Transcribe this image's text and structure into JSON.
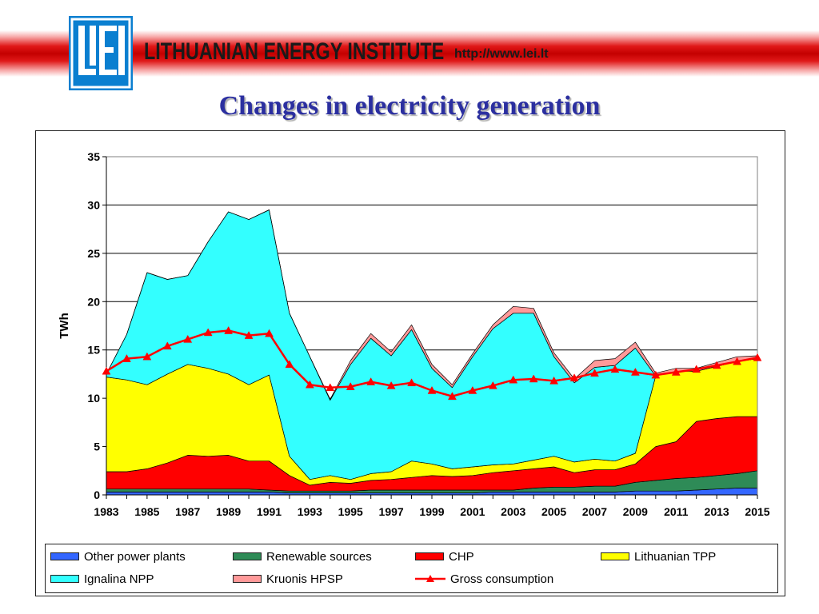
{
  "header": {
    "logo_text": "LEI",
    "institute_name": "LITHUANIAN ENERGY INSTITUTE",
    "url": "http://www.lei.lt",
    "accent_color": "#cc0000",
    "logo_color": "#0a7fd0"
  },
  "slide": {
    "title": "Changes in electricity generation",
    "title_color": "#2b2fa0"
  },
  "chart_data": {
    "type": "area",
    "stacked": true,
    "title": "",
    "xlabel": "",
    "ylabel": "TWh",
    "ylim": [
      0,
      35
    ],
    "yticks": [
      0,
      5,
      10,
      15,
      20,
      25,
      30,
      35
    ],
    "xlim": [
      1983,
      2015
    ],
    "xticks": [
      1983,
      1985,
      1987,
      1989,
      1991,
      1993,
      1995,
      1997,
      1999,
      2001,
      2003,
      2005,
      2007,
      2009,
      2011,
      2013,
      2015
    ],
    "grid": "horizontal",
    "legend_position": "bottom",
    "x": [
      1983,
      1984,
      1985,
      1986,
      1987,
      1988,
      1989,
      1990,
      1991,
      1992,
      1993,
      1994,
      1995,
      1996,
      1997,
      1998,
      1999,
      2000,
      2001,
      2002,
      2003,
      2004,
      2005,
      2006,
      2007,
      2008,
      2009,
      2010,
      2011,
      2012,
      2013,
      2014,
      2015
    ],
    "series": [
      {
        "name": "Other power plants",
        "color": "#3366ff",
        "values": [
          0.3,
          0.3,
          0.3,
          0.3,
          0.3,
          0.3,
          0.3,
          0.3,
          0.3,
          0.2,
          0.2,
          0.2,
          0.2,
          0.2,
          0.2,
          0.2,
          0.2,
          0.2,
          0.2,
          0.3,
          0.3,
          0.3,
          0.3,
          0.3,
          0.3,
          0.3,
          0.4,
          0.4,
          0.4,
          0.5,
          0.6,
          0.7,
          0.7
        ]
      },
      {
        "name": "Renewable sources",
        "color": "#2e8b57",
        "values": [
          0.3,
          0.3,
          0.3,
          0.3,
          0.3,
          0.3,
          0.3,
          0.3,
          0.2,
          0.2,
          0.2,
          0.2,
          0.2,
          0.3,
          0.3,
          0.3,
          0.3,
          0.3,
          0.3,
          0.2,
          0.2,
          0.4,
          0.5,
          0.5,
          0.6,
          0.6,
          0.9,
          1.1,
          1.3,
          1.3,
          1.4,
          1.5,
          1.8
        ]
      },
      {
        "name": "CHP",
        "color": "#ff0000",
        "values": [
          1.8,
          1.8,
          2.1,
          2.7,
          3.5,
          3.4,
          3.5,
          2.9,
          3.0,
          1.6,
          0.6,
          0.9,
          0.8,
          1.0,
          1.1,
          1.3,
          1.5,
          1.4,
          1.5,
          1.8,
          2.0,
          2.0,
          2.1,
          1.5,
          1.7,
          1.7,
          1.9,
          3.5,
          3.8,
          5.8,
          5.9,
          5.9,
          5.6
        ]
      },
      {
        "name": "Lithuanian TPP",
        "color": "#ffff00",
        "values": [
          9.8,
          9.5,
          8.7,
          9.2,
          9.4,
          9.1,
          8.4,
          7.9,
          8.9,
          2.0,
          0.6,
          0.7,
          0.4,
          0.7,
          0.8,
          1.7,
          1.2,
          0.8,
          0.9,
          0.8,
          0.7,
          0.9,
          1.1,
          1.1,
          1.1,
          0.9,
          1.1,
          7.3,
          7.3,
          5.2,
          5.4,
          5.7,
          6.0
        ]
      },
      {
        "name": "Ignalina NPP",
        "color": "#33ffff",
        "values": [
          0.3,
          4.7,
          11.6,
          9.8,
          9.2,
          13.1,
          16.8,
          17.1,
          17.1,
          14.8,
          12.7,
          7.8,
          11.9,
          14.0,
          12.0,
          13.6,
          9.9,
          8.4,
          11.4,
          14.1,
          15.6,
          15.2,
          10.3,
          8.2,
          9.5,
          9.9,
          10.9,
          0,
          0,
          0,
          0,
          0,
          0
        ]
      },
      {
        "name": "Kruonis HPSP",
        "color": "#ff9999",
        "values": [
          0,
          0,
          0,
          0,
          0,
          0,
          0,
          0,
          0,
          0,
          0,
          0.1,
          0.4,
          0.5,
          0.4,
          0.5,
          0.4,
          0.3,
          0.3,
          0.4,
          0.7,
          0.5,
          0.4,
          0.4,
          0.7,
          0.7,
          0.6,
          0.3,
          0.3,
          0.3,
          0.4,
          0.5,
          0.3
        ]
      }
    ],
    "line_series": {
      "name": "Gross consumption",
      "color": "#ff0000",
      "marker": "triangle",
      "values": [
        12.8,
        14.1,
        14.3,
        15.4,
        16.1,
        16.8,
        17.0,
        16.5,
        16.7,
        13.5,
        11.4,
        11.1,
        11.2,
        11.7,
        11.3,
        11.6,
        10.8,
        10.2,
        10.8,
        11.3,
        11.9,
        12.0,
        11.8,
        12.1,
        12.6,
        13.0,
        12.7,
        12.4,
        12.7,
        13.0,
        13.4,
        13.8,
        14.2
      ]
    }
  }
}
